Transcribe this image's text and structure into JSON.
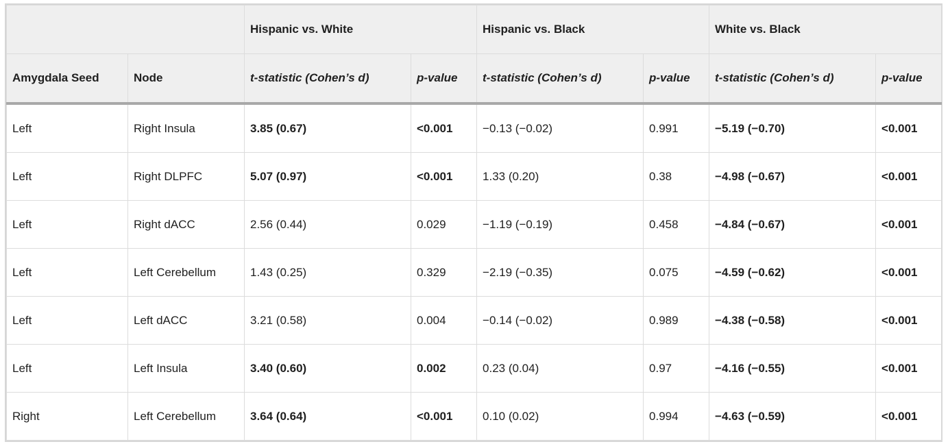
{
  "groups": [
    "",
    "Hispanic vs. White",
    "Hispanic vs. Black",
    "White vs. Black"
  ],
  "columns": [
    "Amygdala Seed",
    "Node",
    "t-statistic (Cohen’s d)",
    "p-value",
    "t-statistic (Cohen’s d)",
    "p-value",
    "t-statistic (Cohen’s d)",
    "p-value"
  ],
  "rows": [
    {
      "seed": "Left",
      "node": "Right Insula",
      "hw_t": "3.85 (0.67)",
      "hw_p": "<0.001",
      "hb_t": "−0.13 (−0.02)",
      "hb_p": "0.991",
      "wb_t": "−5.19 (−0.70)",
      "wb_p": "<0.001",
      "bold": [
        true,
        true,
        false,
        false,
        true,
        true
      ]
    },
    {
      "seed": "Left",
      "node": "Right DLPFC",
      "hw_t": "5.07 (0.97)",
      "hw_p": "<0.001",
      "hb_t": "1.33 (0.20)",
      "hb_p": "0.38",
      "wb_t": "−4.98 (−0.67)",
      "wb_p": "<0.001",
      "bold": [
        true,
        true,
        false,
        false,
        true,
        true
      ]
    },
    {
      "seed": "Left",
      "node": "Right dACC",
      "hw_t": "2.56 (0.44)",
      "hw_p": "0.029",
      "hb_t": "−1.19 (−0.19)",
      "hb_p": "0.458",
      "wb_t": "−4.84 (−0.67)",
      "wb_p": "<0.001",
      "bold": [
        false,
        false,
        false,
        false,
        true,
        true
      ]
    },
    {
      "seed": "Left",
      "node": "Left Cerebellum",
      "hw_t": "1.43 (0.25)",
      "hw_p": "0.329",
      "hb_t": "−2.19 (−0.35)",
      "hb_p": "0.075",
      "wb_t": "−4.59 (−0.62)",
      "wb_p": "<0.001",
      "bold": [
        false,
        false,
        false,
        false,
        true,
        true
      ]
    },
    {
      "seed": "Left",
      "node": "Left dACC",
      "hw_t": "3.21 (0.58)",
      "hw_p": "0.004",
      "hb_t": "−0.14 (−0.02)",
      "hb_p": "0.989",
      "wb_t": "−4.38 (−0.58)",
      "wb_p": "<0.001",
      "bold": [
        false,
        false,
        false,
        false,
        true,
        true
      ]
    },
    {
      "seed": "Left",
      "node": "Left Insula",
      "hw_t": "3.40 (0.60)",
      "hw_p": "0.002",
      "hb_t": "0.23 (0.04)",
      "hb_p": "0.97",
      "wb_t": "−4.16 (−0.55)",
      "wb_p": "<0.001",
      "bold": [
        true,
        true,
        false,
        false,
        true,
        true
      ]
    },
    {
      "seed": "Right",
      "node": "Left Cerebellum",
      "hw_t": "3.64 (0.64)",
      "hw_p": "<0.001",
      "hb_t": "0.10 (0.02)",
      "hb_p": "0.994",
      "wb_t": "−4.63 (−0.59)",
      "wb_p": "<0.001",
      "bold": [
        true,
        true,
        false,
        false,
        true,
        true
      ]
    }
  ]
}
